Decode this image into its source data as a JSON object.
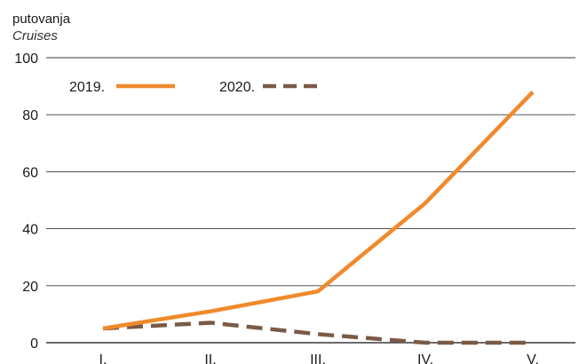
{
  "chart_data": {
    "type": "line",
    "title": "putovanja",
    "subtitle": "Cruises",
    "xlabel": "",
    "ylabel": "",
    "categories": [
      "I.",
      "II.",
      "III.",
      "IV.",
      "V."
    ],
    "ylim": [
      0,
      100
    ],
    "yticks": [
      "0",
      "20",
      "40",
      "60",
      "80",
      "100"
    ],
    "grid": true,
    "legend_position": "top-left",
    "series": [
      {
        "name": "2019.",
        "values": [
          5,
          11,
          18,
          49,
          88
        ],
        "color": "#f08a2c",
        "style": "solid"
      },
      {
        "name": "2020.",
        "values": [
          5,
          7,
          3,
          0,
          0
        ],
        "color": "#7a5a46",
        "style": "dashed"
      }
    ]
  }
}
